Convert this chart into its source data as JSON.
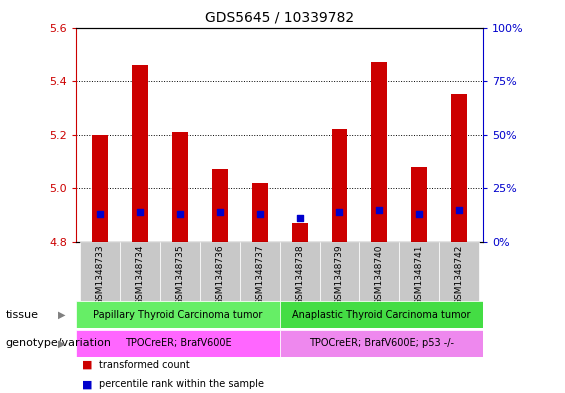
{
  "title": "GDS5645 / 10339782",
  "samples": [
    "GSM1348733",
    "GSM1348734",
    "GSM1348735",
    "GSM1348736",
    "GSM1348737",
    "GSM1348738",
    "GSM1348739",
    "GSM1348740",
    "GSM1348741",
    "GSM1348742"
  ],
  "transformed_count": [
    5.2,
    5.46,
    5.21,
    5.07,
    5.02,
    4.87,
    5.22,
    5.47,
    5.08,
    5.35
  ],
  "percentile_rank": [
    13,
    14,
    13,
    14,
    13,
    11,
    14,
    15,
    13,
    15
  ],
  "ylim_left": [
    4.8,
    5.6
  ],
  "ylim_right": [
    0,
    100
  ],
  "yticks_left": [
    4.8,
    5.0,
    5.2,
    5.4,
    5.6
  ],
  "yticks_right": [
    0,
    25,
    50,
    75,
    100
  ],
  "bar_color": "#cc0000",
  "dot_color": "#0000cc",
  "bar_bottom": 4.8,
  "dot_size": 18,
  "tissue_groups": [
    {
      "label": "Papillary Thyroid Carcinoma tumor",
      "start": 0,
      "end": 5,
      "color": "#66ee66"
    },
    {
      "label": "Anaplastic Thyroid Carcinoma tumor",
      "start": 5,
      "end": 10,
      "color": "#44dd44"
    }
  ],
  "genotype_groups": [
    {
      "label": "TPOCreER; BrafV600E",
      "start": 0,
      "end": 5,
      "color": "#ff66ff"
    },
    {
      "label": "TPOCreER; BrafV600E; p53 -/-",
      "start": 5,
      "end": 10,
      "color": "#ee88ee"
    }
  ],
  "tissue_label": "tissue",
  "genotype_label": "genotype/variation",
  "legend_items": [
    {
      "color": "#cc0000",
      "label": "transformed count"
    },
    {
      "color": "#0000cc",
      "label": "percentile rank within the sample"
    }
  ],
  "bg_color": "#ffffff",
  "plot_bg_color": "#ffffff",
  "tick_bg_color": "#c8c8c8",
  "left_axis_color": "#cc0000",
  "right_axis_color": "#0000cc",
  "bar_width": 0.4
}
